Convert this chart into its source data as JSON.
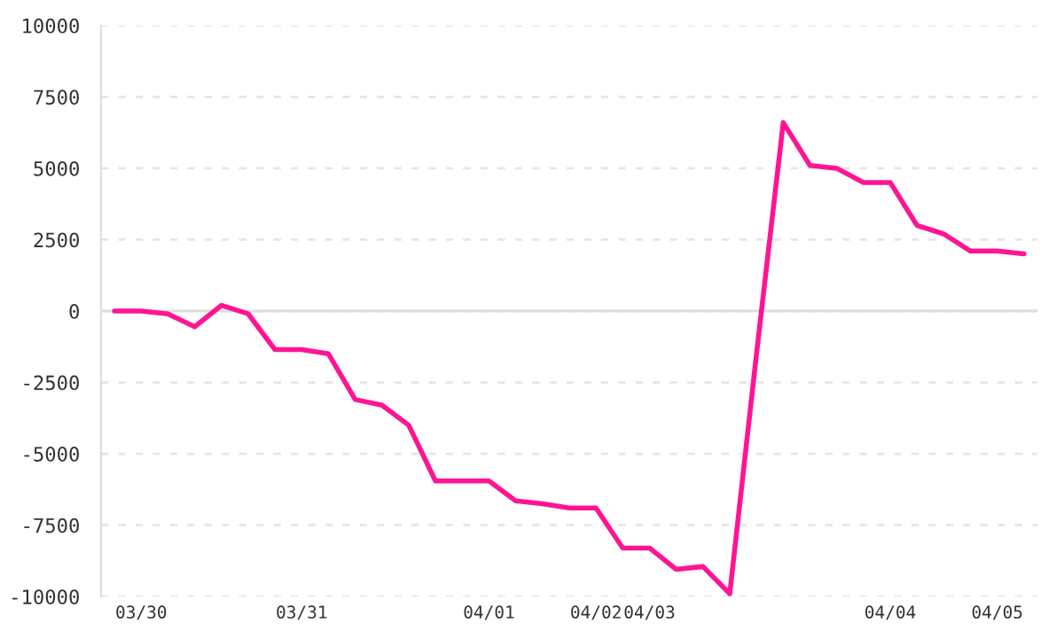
{
  "chart_data": {
    "type": "line",
    "categories": [
      null,
      "03/30",
      null,
      null,
      null,
      null,
      null,
      "03/31",
      null,
      null,
      null,
      null,
      null,
      null,
      "04/01",
      null,
      null,
      null,
      "04/02",
      null,
      "04/03",
      null,
      null,
      null,
      null,
      null,
      null,
      null,
      null,
      "04/04",
      null,
      null,
      null,
      "04/05",
      null
    ],
    "series": [
      {
        "color": "#ff1493",
        "values": [
          0,
          0,
          -100,
          -550,
          200,
          -100,
          -1350,
          -1350,
          -1500,
          -3100,
          -3300,
          -4000,
          -5950,
          -5950,
          -5950,
          -6650,
          -6750,
          -6900,
          -6900,
          -8300,
          -8300,
          -9050,
          -8950,
          -9900,
          -1500,
          6600,
          5100,
          5000,
          4500,
          4500,
          3000,
          2700,
          2100,
          2100,
          2000
        ]
      }
    ],
    "ylim": [
      -10000,
      10000
    ],
    "yticks": [
      -10000,
      -7500,
      -5000,
      -2500,
      0,
      2500,
      5000,
      7500,
      10000
    ],
    "grid": "y",
    "legend": false,
    "marker": "none",
    "line_style": "solid",
    "ref_lines": [
      {
        "axis": "y",
        "value": 0,
        "color": "#dddddd",
        "line_style": "solid"
      }
    ]
  }
}
